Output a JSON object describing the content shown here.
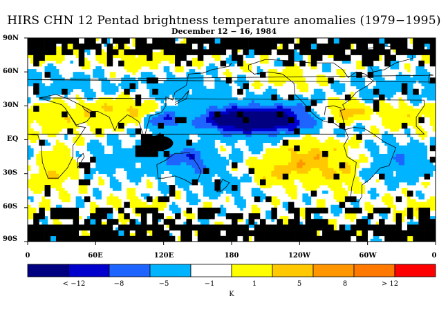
{
  "title": "HIRS CHN 12 Pentad brightness temperature anomalies (1979−1995)",
  "subtitle": "December 12 − 16, 1984",
  "lat_labels": [
    "90N",
    "60N",
    "30N",
    "EQ",
    "30S",
    "60S",
    "90S"
  ],
  "lon_labels": [
    "0",
    "60E",
    "120E",
    "180",
    "120W",
    "60W",
    "0"
  ],
  "colorbar": {
    "colors": [
      "#000080",
      "#0000cd",
      "#1e64ff",
      "#00b4ff",
      "#ffffff",
      "#ffff00",
      "#ffc800",
      "#ff9600",
      "#ff7800",
      "#ff0000"
    ],
    "tick_labels": [
      "< −12",
      "−8",
      "−5",
      "−1",
      "1",
      "5",
      "8",
      "> 12"
    ],
    "unit": "K"
  },
  "colors": {
    "missing": "#000000",
    "coast": "#000000"
  }
}
